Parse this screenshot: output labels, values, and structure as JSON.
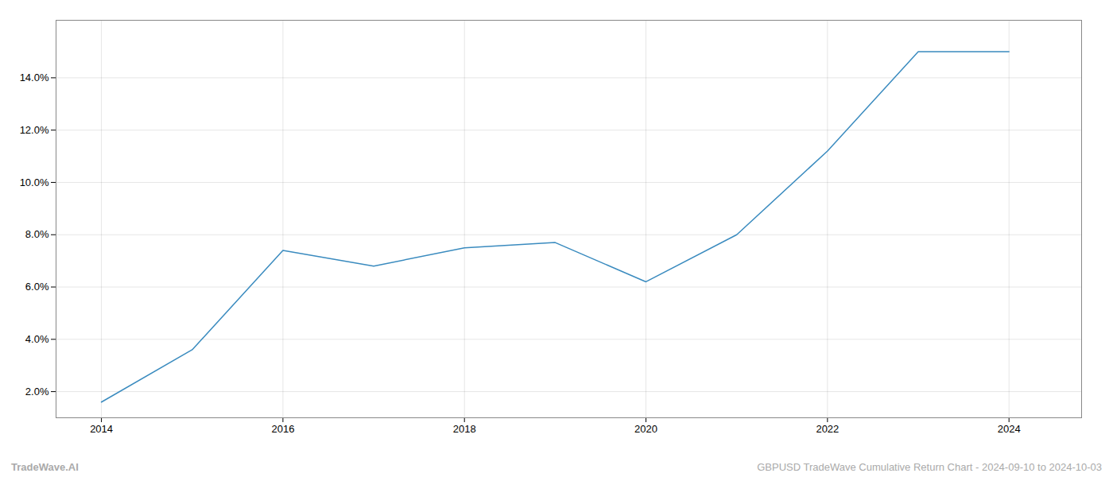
{
  "chart_data": {
    "type": "line",
    "x": [
      2014,
      2015,
      2016,
      2017,
      2018,
      2019,
      2020,
      2021,
      2022,
      2023,
      2024
    ],
    "values": [
      1.6,
      3.6,
      7.4,
      6.8,
      7.5,
      7.7,
      6.2,
      8.0,
      11.2,
      15.0,
      15.0
    ],
    "color": "#3a8bbf",
    "xlim": [
      2013.5,
      2024.8
    ],
    "xticks": [
      2014,
      2016,
      2018,
      2020,
      2022,
      2024
    ],
    "ylim": [
      1.0,
      16.2
    ],
    "yticks": [
      {
        "value": 2.0,
        "label": "2.0%"
      },
      {
        "value": 4.0,
        "label": "4.0%"
      },
      {
        "value": 6.0,
        "label": "6.0%"
      },
      {
        "value": 8.0,
        "label": "8.0%"
      },
      {
        "value": 10.0,
        "label": "10.0%"
      },
      {
        "value": 12.0,
        "label": "12.0%"
      },
      {
        "value": 14.0,
        "label": "14.0%"
      }
    ],
    "grid": true,
    "annotations": [
      "TradeWave.AI",
      "GBPUSD TradeWave Cumulative Return Chart - 2024-09-10 to 2024-10-03"
    ]
  }
}
